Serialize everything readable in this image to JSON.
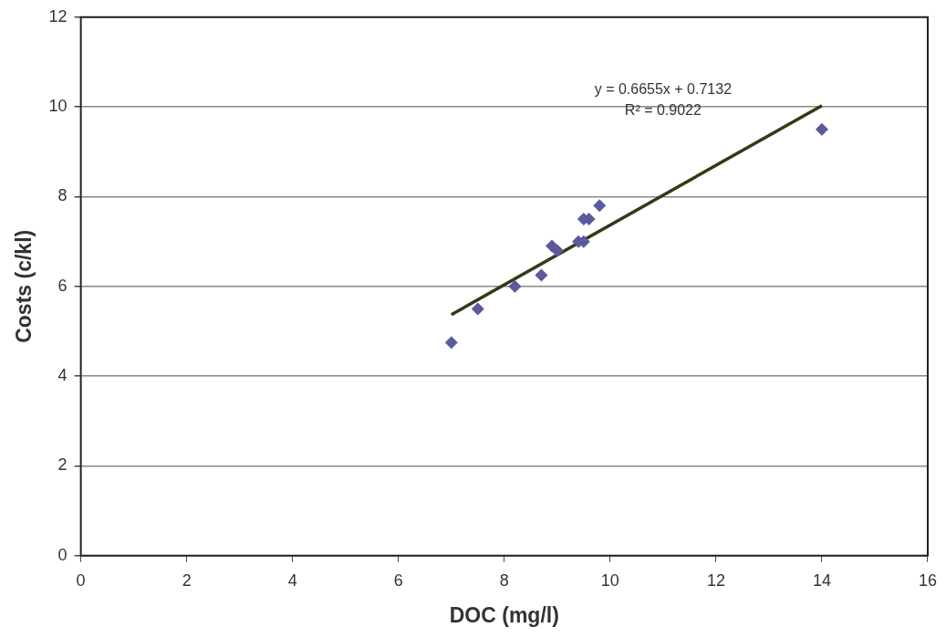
{
  "chart_data": {
    "type": "scatter",
    "xlabel": "DOC (mg/l)",
    "ylabel": "Costs (c/kl)",
    "xlim": [
      0,
      16
    ],
    "xticks": [
      0,
      2,
      4,
      6,
      8,
      10,
      12,
      14,
      16
    ],
    "ylim": [
      0,
      12
    ],
    "yticks": [
      0,
      2,
      4,
      6,
      8,
      10,
      12
    ],
    "grid": "y",
    "legend": false,
    "marker": "diamond",
    "series": [
      {
        "color": "#5a5a9c",
        "x": [
          7,
          7.5,
          8.2,
          8.7,
          8.9,
          9.0,
          9.4,
          9.5,
          9.5,
          9.6,
          9.8,
          14
        ],
        "values": [
          4.75,
          5.5,
          6.0,
          6.25,
          6.9,
          6.8,
          7.0,
          7.0,
          7.5,
          7.5,
          7.8,
          9.5
        ]
      },
      {
        "type": "line",
        "color": "#2e3b17",
        "marker": "none",
        "x": [
          7,
          14
        ],
        "values": [
          5.37,
          10.03
        ]
      }
    ],
    "annotations": [
      "y = 0.6655x + 0.7132",
      "R² = 0.9022"
    ]
  }
}
